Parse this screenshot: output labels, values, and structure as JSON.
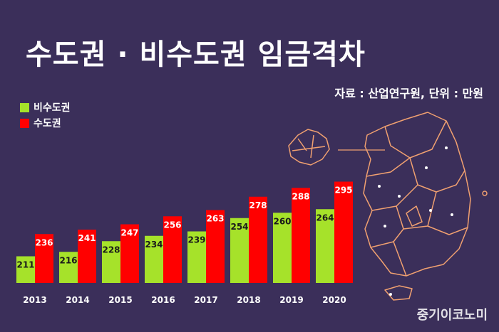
{
  "title": "수도권 · 비수도권 임금격차",
  "source_text": "자료 : 산업연구원, 단위 : 만원",
  "watermark": "중기이코노미",
  "map_icon": "korea-map-icon",
  "colors": {
    "background": "#3b2f5a",
    "non_capital": "#a6e22a",
    "capital": "#ff0000",
    "map_outline": "#f0a070"
  },
  "chart_data": {
    "type": "bar",
    "categories": [
      "2013",
      "2014",
      "2015",
      "2016",
      "2017",
      "2018",
      "2019",
      "2020"
    ],
    "series": [
      {
        "name": "비수도권",
        "values": [
          211,
          216,
          228,
          234,
          239,
          254,
          260,
          264
        ]
      },
      {
        "name": "수도권",
        "values": [
          236,
          241,
          247,
          256,
          263,
          278,
          288,
          295
        ]
      }
    ],
    "title": "수도권 · 비수도권 임금격차",
    "xlabel": "",
    "ylabel": "",
    "legend": "top-left",
    "grid": false
  }
}
